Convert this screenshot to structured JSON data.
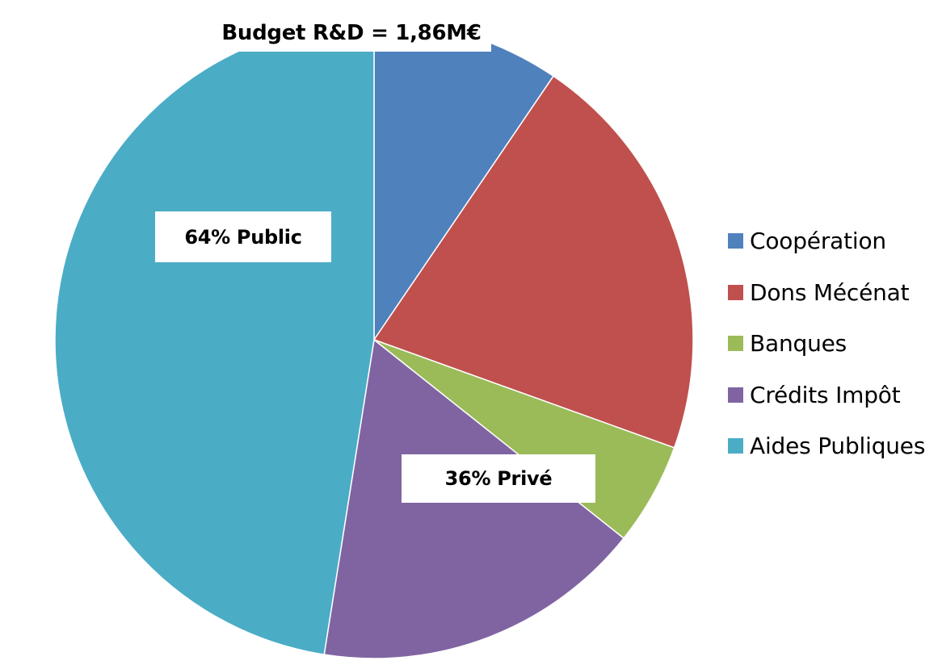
{
  "chart_data": {
    "type": "pie",
    "title": "Budget R&D = 1,86M€",
    "start_angle_deg": 0,
    "direction": "clockwise",
    "categories": [
      "Coopération",
      "Dons Mécénat",
      "Banques",
      "Crédits Impôt",
      "Aides Publiques"
    ],
    "values": [
      9.5,
      21.0,
      5.2,
      16.8,
      47.5
    ],
    "colors": [
      "#4F81BD",
      "#C0504D",
      "#9BBB59",
      "#8064A2",
      "#4BACC6"
    ],
    "annotations": [
      {
        "id": "public",
        "text": "64% Public"
      },
      {
        "id": "prive",
        "text": "36% Privé"
      }
    ],
    "legend_position": "right"
  }
}
